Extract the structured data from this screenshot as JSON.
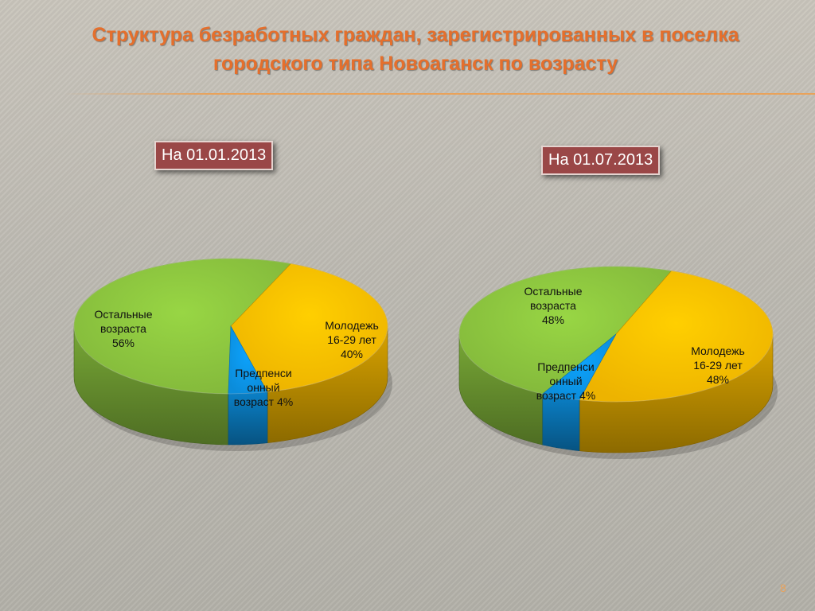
{
  "slide": {
    "title_line1": "Структура безработных граждан, зарегистрированных в поселка",
    "title_line2": "городского типа Новоаганск по возрасту",
    "page_number": "8"
  },
  "colors": {
    "green": "#8dc63f",
    "orange": "#ffc000",
    "blue": "#0c97ea",
    "title": "#e56f2c",
    "tag": "#9a4747"
  },
  "chart_data": [
    {
      "type": "pie",
      "title": "На 01.01.2013",
      "slices": [
        {
          "name_lines": [
            "Остальные",
            "возраста"
          ],
          "value": 56,
          "label": "56%",
          "color": "#8dc63f"
        },
        {
          "name_lines": [
            "Молодежь",
            "16-29 лет"
          ],
          "value": 40,
          "label": "40%",
          "color": "#ffc000"
        },
        {
          "name_lines": [
            "Предпенси",
            "онный"
          ],
          "value": 4,
          "label": "возраст 4%",
          "color": "#0c97ea"
        }
      ]
    },
    {
      "type": "pie",
      "title": "На 01.07.2013",
      "slices": [
        {
          "name_lines": [
            "Остальные",
            "возраста"
          ],
          "value": 48,
          "label": "48%",
          "color": "#8dc63f"
        },
        {
          "name_lines": [
            "Молодежь",
            "16-29 лет"
          ],
          "value": 48,
          "label": "48%",
          "color": "#ffc000"
        },
        {
          "name_lines": [
            "Предпенси",
            "онный"
          ],
          "value": 4,
          "label": "возраст 4%",
          "color": "#0c97ea"
        }
      ]
    }
  ]
}
